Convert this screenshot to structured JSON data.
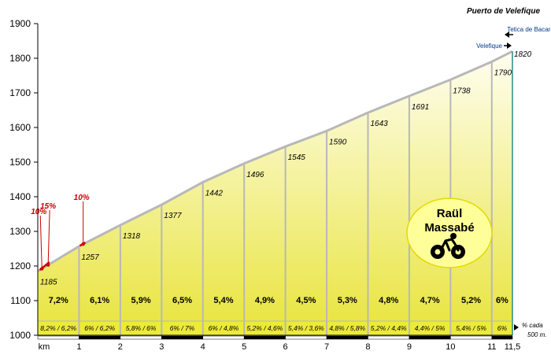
{
  "chart_data": {
    "type": "area",
    "title": "Puerto de Velefique",
    "xlabel": "km",
    "ylim": [
      1000,
      1900
    ],
    "yticks": [
      1000,
      1100,
      1200,
      1300,
      1400,
      1500,
      1600,
      1700,
      1800,
      1900
    ],
    "xlim": [
      0,
      11.5
    ],
    "xticks": [
      {
        "value": 0,
        "label": "km"
      },
      {
        "value": 1,
        "label": "1"
      },
      {
        "value": 2,
        "label": "2"
      },
      {
        "value": 3,
        "label": "3"
      },
      {
        "value": 4,
        "label": "4"
      },
      {
        "value": 5,
        "label": "5"
      },
      {
        "value": 6,
        "label": "6"
      },
      {
        "value": 7,
        "label": "7"
      },
      {
        "value": 8,
        "label": "8"
      },
      {
        "value": 9,
        "label": "9"
      },
      {
        "value": 10,
        "label": "10"
      },
      {
        "value": 11,
        "label": "11"
      },
      {
        "value": 11.5,
        "label": "11,5"
      }
    ],
    "points": [
      {
        "x": 0,
        "y": 1185,
        "label": "1185"
      },
      {
        "x": 1,
        "y": 1257,
        "label": "1257"
      },
      {
        "x": 2,
        "y": 1318,
        "label": "1318"
      },
      {
        "x": 3,
        "y": 1377,
        "label": "1377"
      },
      {
        "x": 4,
        "y": 1442,
        "label": "1442"
      },
      {
        "x": 5,
        "y": 1496,
        "label": "1496"
      },
      {
        "x": 6,
        "y": 1545,
        "label": "1545"
      },
      {
        "x": 7,
        "y": 1590,
        "label": "1590"
      },
      {
        "x": 8,
        "y": 1643,
        "label": "1643"
      },
      {
        "x": 9,
        "y": 1691,
        "label": "1691"
      },
      {
        "x": 10,
        "y": 1738,
        "label": "1738"
      },
      {
        "x": 11,
        "y": 1790,
        "label": "1790"
      },
      {
        "x": 11.5,
        "y": 1820,
        "label": "1820"
      }
    ],
    "segment_grades": [
      "7,2%",
      "6,1%",
      "5,9%",
      "6,5%",
      "5,4%",
      "4,9%",
      "4,5%",
      "5,3%",
      "4,8%",
      "4,7%",
      "5,2%",
      "6%"
    ],
    "half_km_grades": [
      "8,2% / 6,2%",
      "6% / 6,2%",
      "5,8% / 6%",
      "6% / 7%",
      "6% / 4,8%",
      "5,2% / 4,6%",
      "5,4% / 3,6%",
      "4,8% / 5,8%",
      "5,2% / 4,4%",
      "4,4% / 5%",
      "5,4% / 5%",
      "6%"
    ],
    "steep_sections": [
      {
        "x": 0.1,
        "label": "10%"
      },
      {
        "x": 0.25,
        "label": "15%"
      },
      {
        "x": 1.1,
        "label": "10%"
      }
    ],
    "annotations": {
      "summit_top": "Tetica de Bacares",
      "summit_name": "Velefique",
      "per500_note": "% cada 500 m."
    },
    "author": {
      "line1": "Raül",
      "line2": "Massabé"
    },
    "colors": {
      "fill_top": "#fffde8",
      "fill_bottom": "#e6e238",
      "band": "#ecea3a",
      "profile": "#b8b8b8",
      "steep": "#cc0000",
      "badge": "#ffff99",
      "axis": "#000000",
      "annotation": "#003a8c"
    },
    "icon": "cyclist-icon"
  }
}
